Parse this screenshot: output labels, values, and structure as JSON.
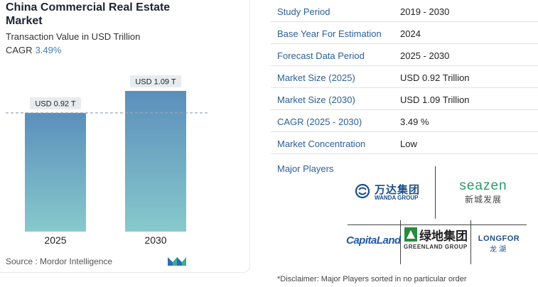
{
  "header": {
    "title": "China Commercial Real Estate Market",
    "subtitle": "Transaction Value in USD Trillion",
    "cagr_label": "CAGR",
    "cagr_value": "3.49%"
  },
  "chart_data": {
    "type": "bar",
    "categories": [
      "2025",
      "2030"
    ],
    "values": [
      0.92,
      1.09
    ],
    "data_labels": [
      "USD 0.92 T",
      "USD 1.09 T"
    ],
    "ylim": [
      0,
      1.09
    ],
    "reference_line": 0.92,
    "colors": {
      "bar_top": "#5b8fbc",
      "bar_bottom": "#87c9cc",
      "label_bg": "#e8ecf0",
      "dashed_line": "#9aa7b6"
    }
  },
  "footer": {
    "source_label": "Source :",
    "source_value": "Mordor Intelligence"
  },
  "table": [
    {
      "key": "Study Period",
      "value": "2019 - 2030"
    },
    {
      "key": "Base Year For Estimation",
      "value": "2024"
    },
    {
      "key": "Forecast Data Period",
      "value": "2025 - 2030"
    },
    {
      "key": "Market Size (2025)",
      "value": "USD 0.92 Trillion"
    },
    {
      "key": "Market Size (2030)",
      "value": "USD 1.09 Trillion"
    },
    {
      "key": "CAGR (2025 - 2030)",
      "value": "3.49 %"
    },
    {
      "key": "Market Concentration",
      "value": "Low"
    }
  ],
  "players": {
    "title": "Major Players",
    "wanda": {
      "cn": "万达集团",
      "en": "WANDA GROUP"
    },
    "seazen": {
      "en": "seazen",
      "cn": "新城发展"
    },
    "capitaland": {
      "en": "CapitaLand"
    },
    "greenland": {
      "cn": "绿地集团",
      "en": "GREENLAND GROUP"
    },
    "longfor": {
      "en": "LONGFOR",
      "cn": "龙湖"
    }
  },
  "disclaimer": "*Disclaimer: Major Players sorted in no particular order",
  "brand_colors": {
    "link": "#2c5f98",
    "accent": "#3f7fb3",
    "wanda": "#1a4e8c",
    "seazen": "#2e9b6e",
    "greenland": "#2a8a3e",
    "capitaland": "#1e5aa8",
    "longfor": "#1e4f8c"
  }
}
